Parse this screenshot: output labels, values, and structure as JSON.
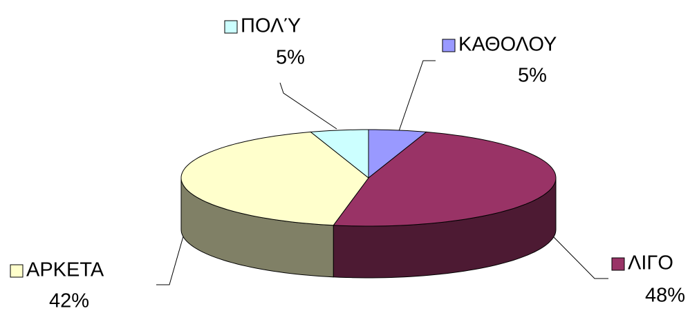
{
  "chart_data": {
    "type": "pie",
    "categories": [
      "ΚΑΘΟΛΟΥ",
      "ΛΙΓΟ",
      "ΑΡΚΕΤΑ",
      "ΠΟΛΎ"
    ],
    "values": [
      5,
      48,
      42,
      5
    ],
    "value_labels": [
      "5%",
      "48%",
      "42%",
      "5%"
    ],
    "colors": [
      "#9999ff",
      "#993366",
      "#ffffcc",
      "#ccffff"
    ]
  }
}
